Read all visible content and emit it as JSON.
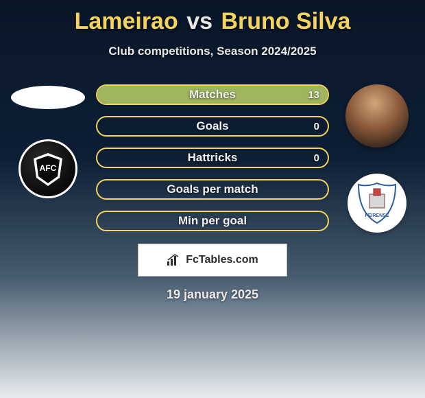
{
  "title": {
    "player_left": "Lameirao",
    "vs": "vs",
    "player_right": "Bruno Silva",
    "left_color": "#f4d35e",
    "right_color": "#f4d35e",
    "vs_color": "#e8e8e8",
    "fontsize": 34
  },
  "subtitle": "Club competitions, Season 2024/2025",
  "stats": {
    "bar_border_color": "#f4d35e",
    "label_color": "#f0f0f0",
    "label_fontsize": 17,
    "rows": [
      {
        "label": "Matches",
        "left": "",
        "right": "13",
        "fill_left_pct": 0,
        "fill_right_pct": 100,
        "fill_right_color": "#9fb65e"
      },
      {
        "label": "Goals",
        "left": "",
        "right": "0",
        "fill_left_pct": 0,
        "fill_right_pct": 0
      },
      {
        "label": "Hattricks",
        "left": "",
        "right": "0",
        "fill_left_pct": 0,
        "fill_right_pct": 0
      },
      {
        "label": "Goals per match",
        "left": "",
        "right": "",
        "fill_left_pct": 0,
        "fill_right_pct": 0
      },
      {
        "label": "Min per goal",
        "left": "",
        "right": "",
        "fill_left_pct": 0,
        "fill_right_pct": 0
      }
    ]
  },
  "left_side": {
    "placeholder_shape": "oval",
    "club_badge_label": "AFC",
    "club_badge_bg": "#0a0a0a",
    "club_badge_border": "#ffffff"
  },
  "right_side": {
    "player_photo_present": true,
    "club_badge_label": "FEIRENSE",
    "club_badge_bg": "#ffffff"
  },
  "brand": {
    "text": "FcTables.com",
    "icon": "bar-chart-icon"
  },
  "date": "19 january 2025",
  "background": {
    "gradient_top": "#0a1628",
    "gradient_mid": "#485d6f",
    "gradient_bottom": "#e8ecef"
  }
}
